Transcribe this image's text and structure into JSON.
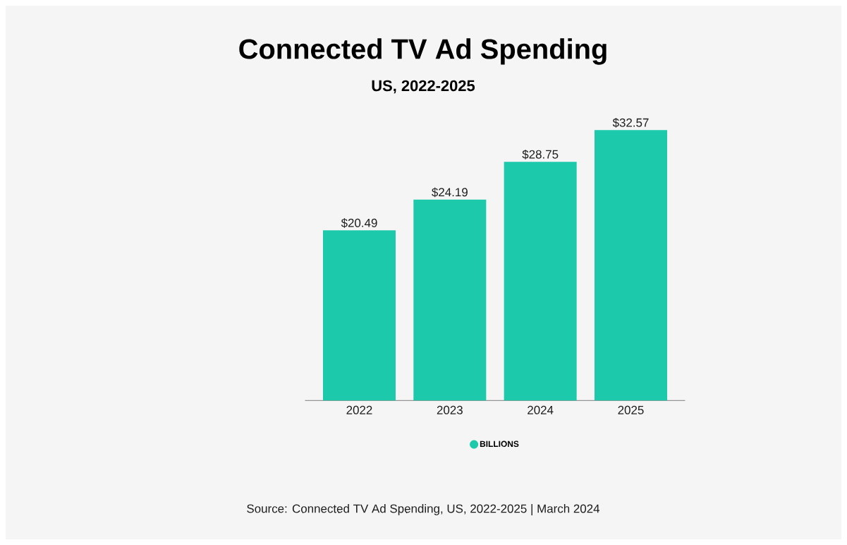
{
  "chart_data": {
    "type": "bar",
    "title": "Connected TV Ad Spending",
    "subtitle": "US, 2022-2025",
    "categories": [
      "2022",
      "2023",
      "2024",
      "2025"
    ],
    "series": [
      {
        "name": "BILLIONS",
        "color": "#1dc9ab",
        "values": [
          20.49,
          24.19,
          28.75,
          32.57
        ],
        "value_labels": [
          "$20.49",
          "$24.19",
          "$28.75",
          "$32.57"
        ]
      }
    ],
    "legend": "bottom",
    "annotations": [
      "Source: Connected TV Ad Spending, US, 2022-2025 | March 2024"
    ]
  }
}
